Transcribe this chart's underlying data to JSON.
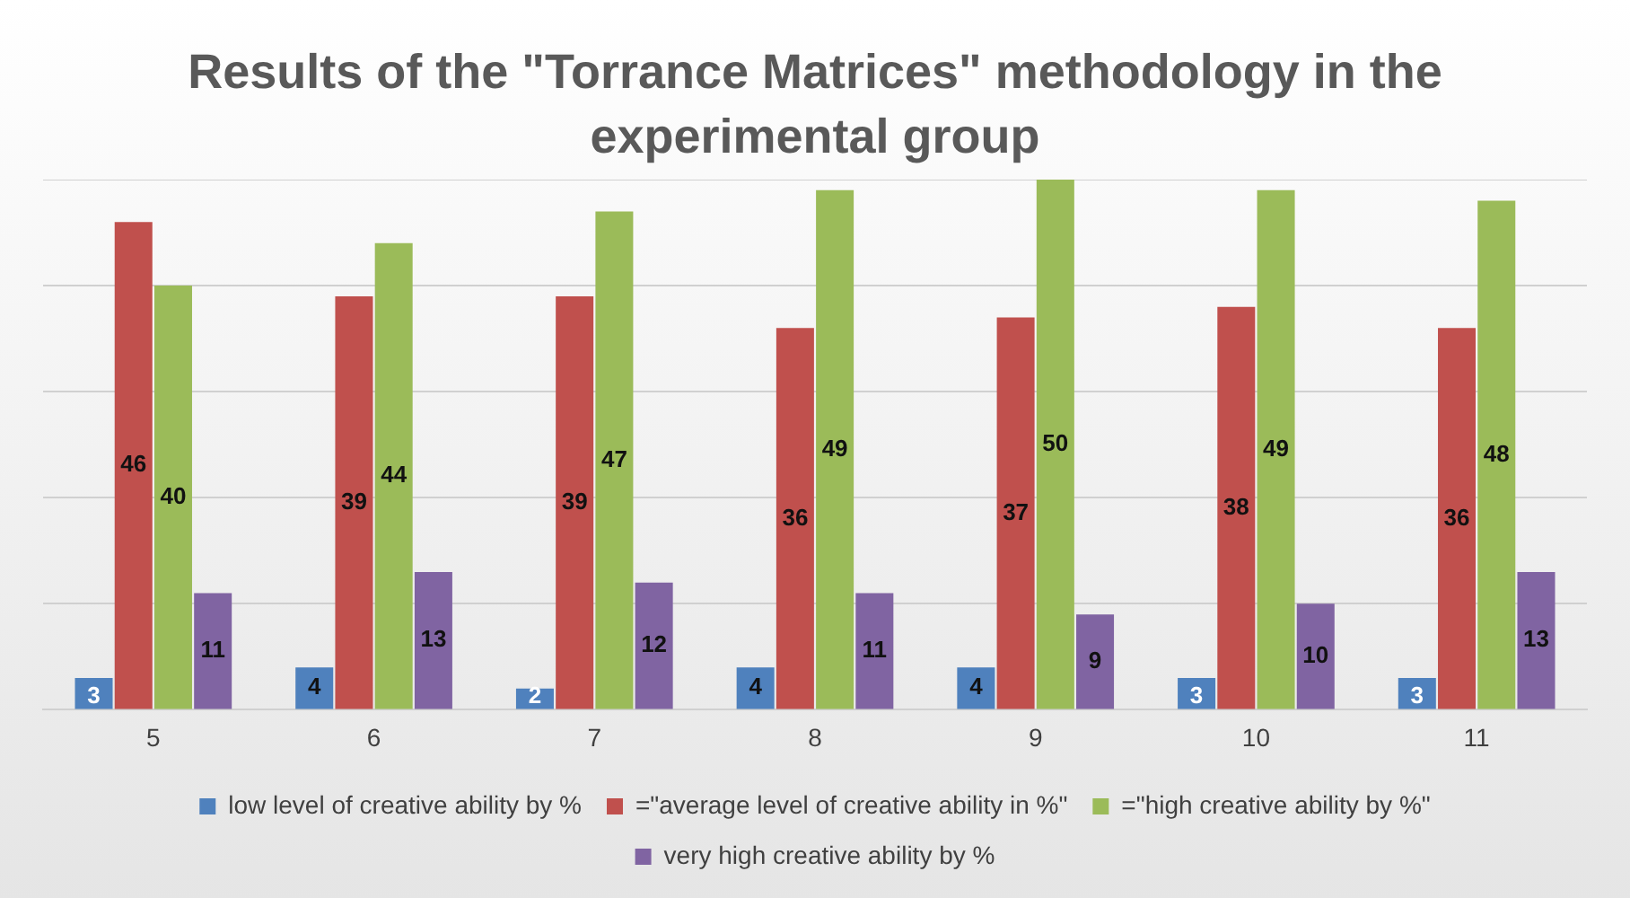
{
  "chart_data": {
    "type": "bar",
    "title": "Results of the \"Torrance Matrices\" methodology in the experimental group",
    "categories": [
      "5",
      "6",
      "7",
      "8",
      "9",
      "10",
      "11"
    ],
    "series": [
      {
        "name": "low level of creative ability by %",
        "color": "#4f81bd",
        "values": [
          3,
          4,
          2,
          4,
          4,
          3,
          3
        ]
      },
      {
        "name": "=\"average level of creative ability in %\"",
        "color": "#c0504d",
        "values": [
          46,
          39,
          39,
          36,
          37,
          38,
          36
        ]
      },
      {
        "name": "=\"high creative ability by %\"",
        "color": "#9bbb59",
        "values": [
          40,
          44,
          47,
          49,
          50,
          49,
          48
        ]
      },
      {
        "name": "very high creative ability by %",
        "color": "#8064a2",
        "values": [
          11,
          13,
          12,
          11,
          9,
          10,
          13
        ]
      }
    ],
    "ylim": [
      0,
      50
    ],
    "yticks": [
      {
        "value": 0,
        "label": null
      },
      {
        "value": 10,
        "label": null
      },
      {
        "value": 20,
        "label": null
      },
      {
        "value": 30,
        "label": null
      },
      {
        "value": 40,
        "label": null
      },
      {
        "value": 50,
        "label": null
      }
    ],
    "tick_labels": "x",
    "grid": "y",
    "legend": "bottom",
    "data_labels": true
  }
}
